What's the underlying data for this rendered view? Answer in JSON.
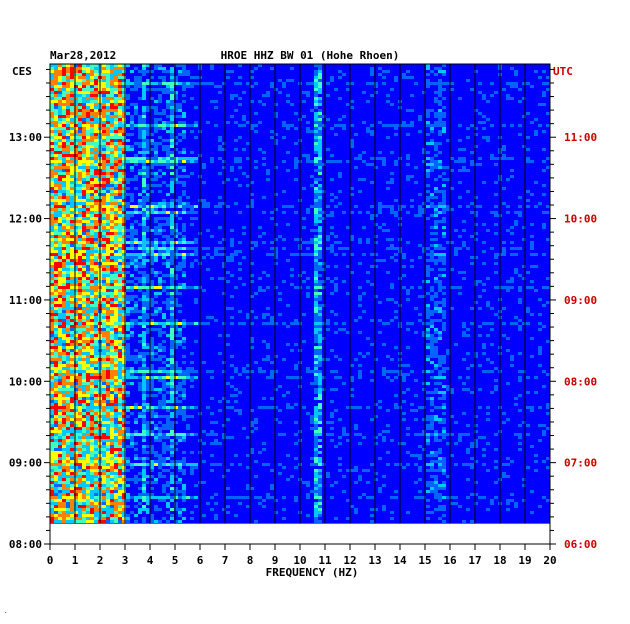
{
  "chart_data": {
    "type": "heatmap",
    "date": "Mar28,2012",
    "title": "HROE HHZ BW 01 (Hohe Rhoen)",
    "xlabel": "FREQUENCY (HZ)",
    "xlim": [
      0,
      20
    ],
    "x_ticks": [
      "0",
      "1",
      "2",
      "3",
      "4",
      "5",
      "6",
      "7",
      "8",
      "9",
      "10",
      "11",
      "12",
      "13",
      "14",
      "15",
      "16",
      "17",
      "18",
      "19",
      "20"
    ],
    "left_axis": {
      "label": "CES",
      "ticks": [
        "13:00",
        "12:00",
        "11:00",
        "10:00",
        "09:00",
        "08:00"
      ],
      "range_hours": [
        8.0,
        13.9
      ]
    },
    "right_axis": {
      "label": "UTC",
      "ticks": [
        "11:00",
        "10:00",
        "09:00",
        "08:00",
        "07:00",
        "06:00"
      ],
      "range_hours": [
        6.0,
        11.9
      ]
    },
    "data_ends_at_hours_cest": 8.25,
    "colormap": [
      "#000090",
      "#0000ff",
      "#0064ff",
      "#00c8ff",
      "#40ffc0",
      "#ffff00",
      "#ff8000",
      "#ff0000"
    ],
    "grid": true,
    "feature_bands_hz": [
      {
        "from": 0,
        "to": 3.0,
        "level": "high"
      },
      {
        "from": 3.7,
        "to": 3.85,
        "level": "medium"
      },
      {
        "from": 4.8,
        "to": 5.0,
        "level": "medium"
      },
      {
        "from": 10.6,
        "to": 10.9,
        "level": "medium"
      },
      {
        "from": 15.0,
        "to": 15.8,
        "level": "low"
      }
    ]
  },
  "footer_mark": "."
}
